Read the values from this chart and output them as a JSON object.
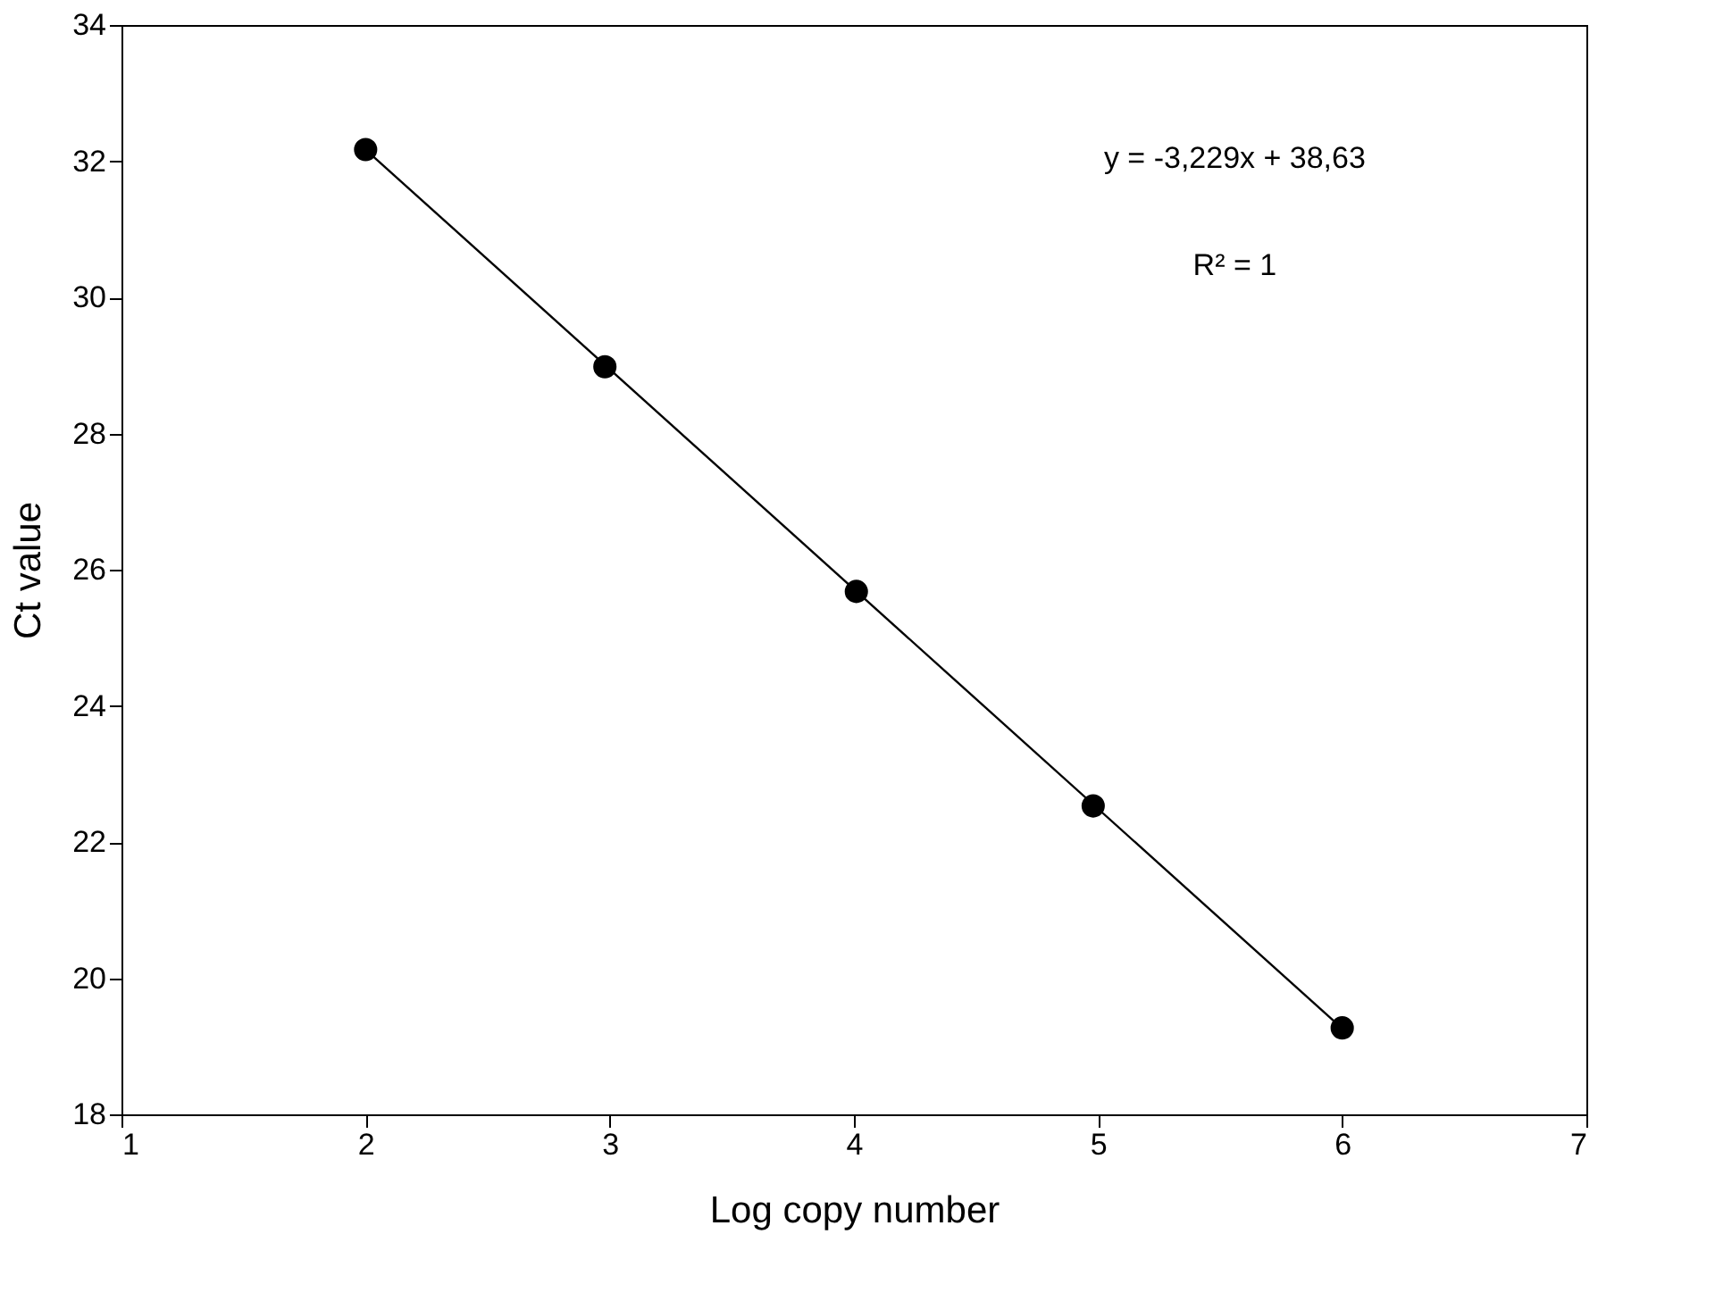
{
  "chart_data": {
    "type": "scatter",
    "xlabel": "Log copy number",
    "ylabel": "Ct value",
    "series": [
      {
        "color": "#000000",
        "x": [
          2,
          2.98,
          4.01,
          4.98,
          6
        ],
        "values": [
          32.17,
          28.98,
          25.68,
          22.53,
          19.27
        ]
      },
      {
        "type": "line",
        "marker": "none",
        "color": "#000000",
        "x": [
          2,
          6
        ],
        "values": [
          32.17,
          19.26
        ]
      }
    ],
    "annotations": [
      "y = -3,229x + 38,63",
      "R² = 1"
    ],
    "xlim": [
      1,
      7
    ],
    "xticks": [
      1,
      2,
      3,
      4,
      5,
      6,
      7
    ],
    "ylim": [
      18,
      34
    ],
    "yticks": [
      18,
      20,
      22,
      24,
      26,
      28,
      30,
      32,
      34
    ],
    "marker": "circle",
    "line_style": "solid"
  }
}
